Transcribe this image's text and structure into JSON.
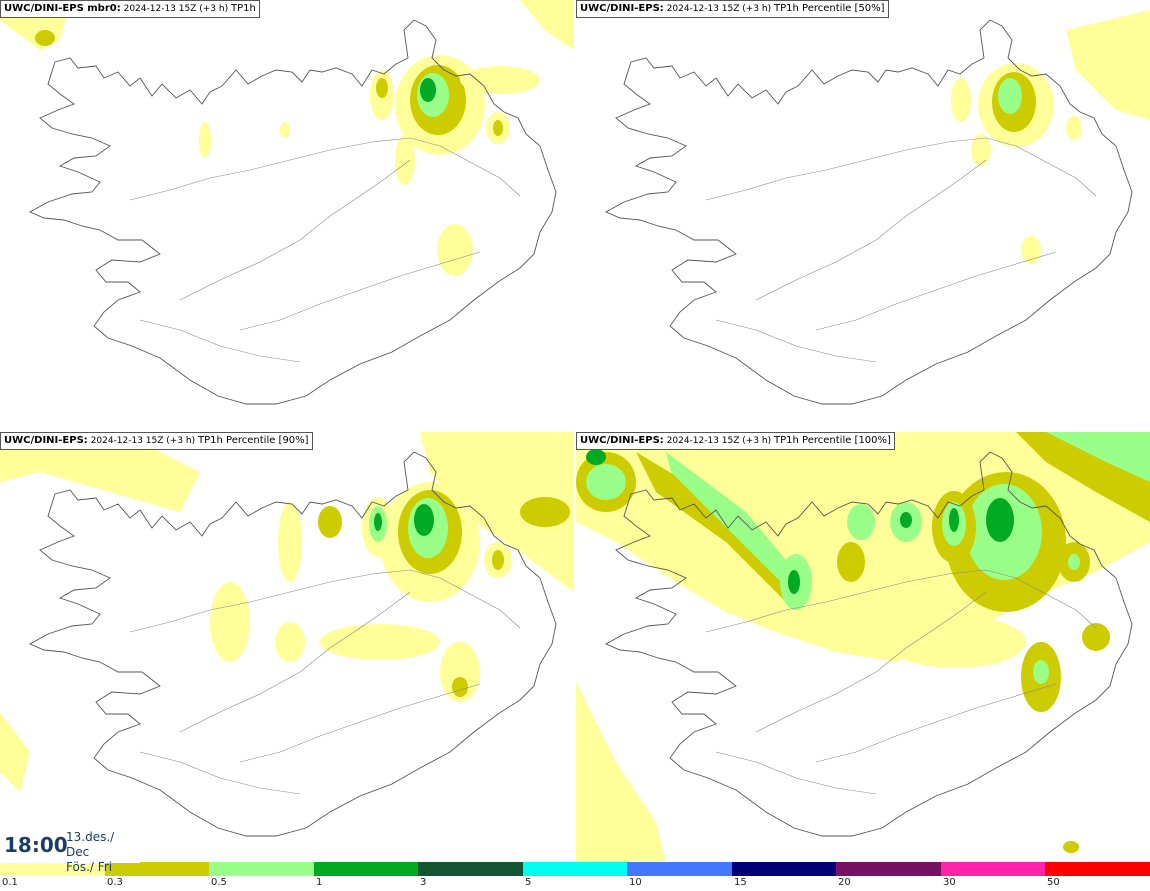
{
  "panels": [
    {
      "model": "UWC/DINI-EPS mbr0",
      "run": "2024-12-13 15Z (+3 h)",
      "param": "TP1h"
    },
    {
      "model": "UWC/DINI-EPS",
      "run": "2024-12-13 15Z (+3 h)",
      "param": "TP1h Percentile [50%]"
    },
    {
      "model": "UWC/DINI-EPS",
      "run": "2024-12-13 15Z (+3 h)",
      "param": "TP1h Percentile [90%]"
    },
    {
      "model": "UWC/DINI-EPS",
      "run": "2024-12-13 15Z (+3 h)",
      "param": "TP1h Percentile [100%]"
    }
  ],
  "time": {
    "clock": "18:00",
    "date_line": "13.des./ Dec",
    "day_line": "Fös./ Fri"
  },
  "legend": {
    "colors": [
      "#ffff99",
      "#cccc00",
      "#99ff88",
      "#00aa22",
      "#115533",
      "#00ffee",
      "#4477ff",
      "#000077",
      "#771166",
      "#ff22aa",
      "#ff0000"
    ],
    "labels": [
      "0.1",
      "0.3",
      "0.5",
      "1",
      "3",
      "5",
      "10",
      "15",
      "20",
      "30",
      "50"
    ]
  }
}
